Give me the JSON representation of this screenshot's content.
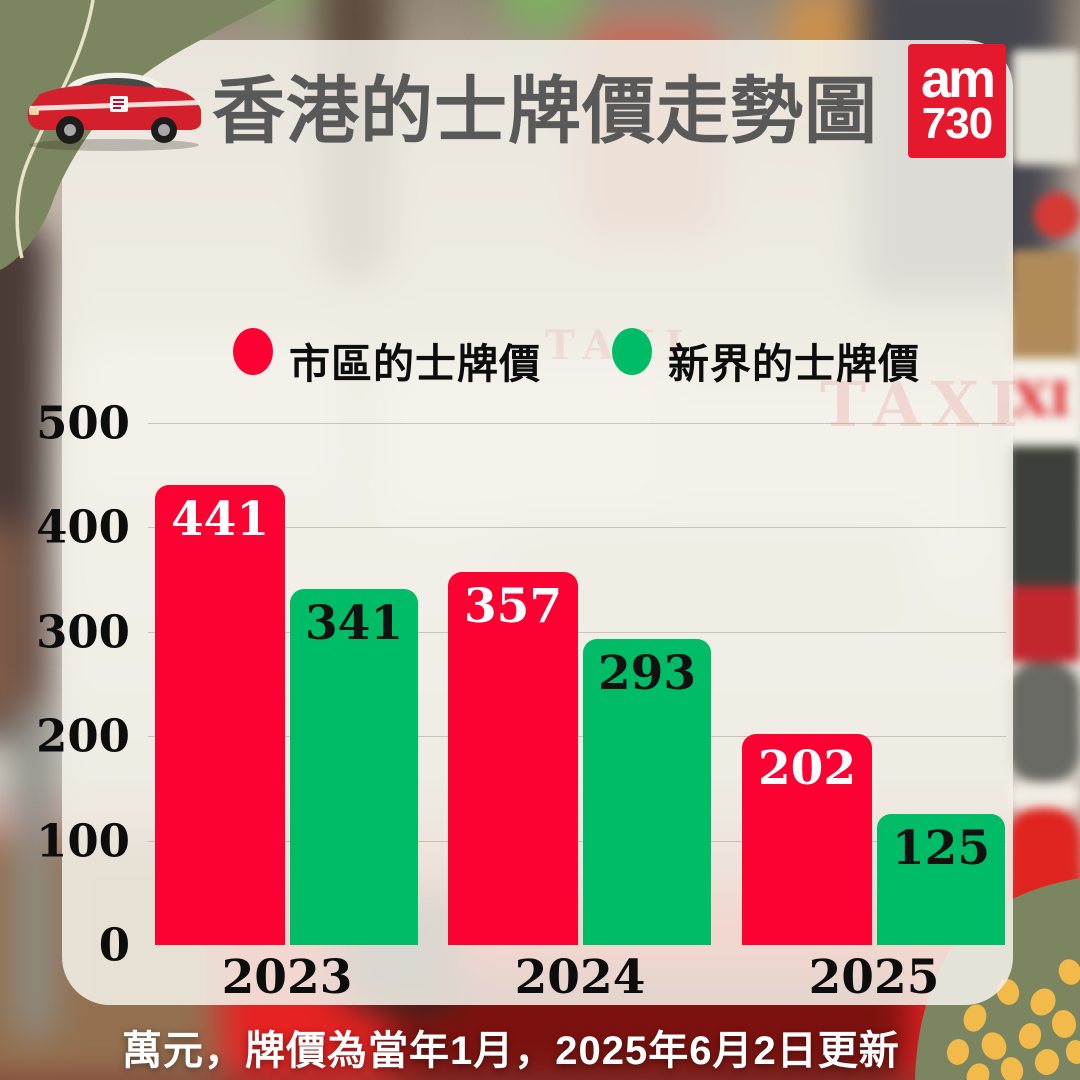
{
  "header": {
    "title": "香港的士牌價走勢圖",
    "logo_line1": "am",
    "logo_line2": "730"
  },
  "legend": [
    {
      "label": "市區的士牌價",
      "color": "#fb0233"
    },
    {
      "label": "新界的士牌價",
      "color": "#01bc66"
    }
  ],
  "footer": {
    "note": "萬元，牌價為當年1月，2025年6月2日更新"
  },
  "background": {
    "sign_text": "TAXI"
  },
  "chart_data": {
    "type": "bar",
    "title": "香港的士牌價走勢圖",
    "categories": [
      "2023",
      "2024",
      "2025"
    ],
    "series": [
      {
        "name": "市區的士牌價",
        "color": "#fb0233",
        "label_color": "#ffffff",
        "values": [
          441,
          357,
          202
        ]
      },
      {
        "name": "新界的士牌價",
        "color": "#01bc66",
        "label_color": "#111111",
        "values": [
          341,
          293,
          125
        ]
      }
    ],
    "xlabel": "",
    "ylabel": "",
    "unit_note": "萬元",
    "y_ticks": [
      0,
      100,
      200,
      300,
      400,
      500
    ],
    "ylim": [
      0,
      500
    ],
    "grid": true,
    "legend_position": "top"
  },
  "colors": {
    "urban_red": "#fb0233",
    "nt_green": "#01bc66",
    "logo_red": "#e6182e",
    "olive": "#7b8660",
    "panel_cream": "#f3f0e8",
    "dots_yellow": "#f2b94b",
    "title_gray": "#595959"
  }
}
